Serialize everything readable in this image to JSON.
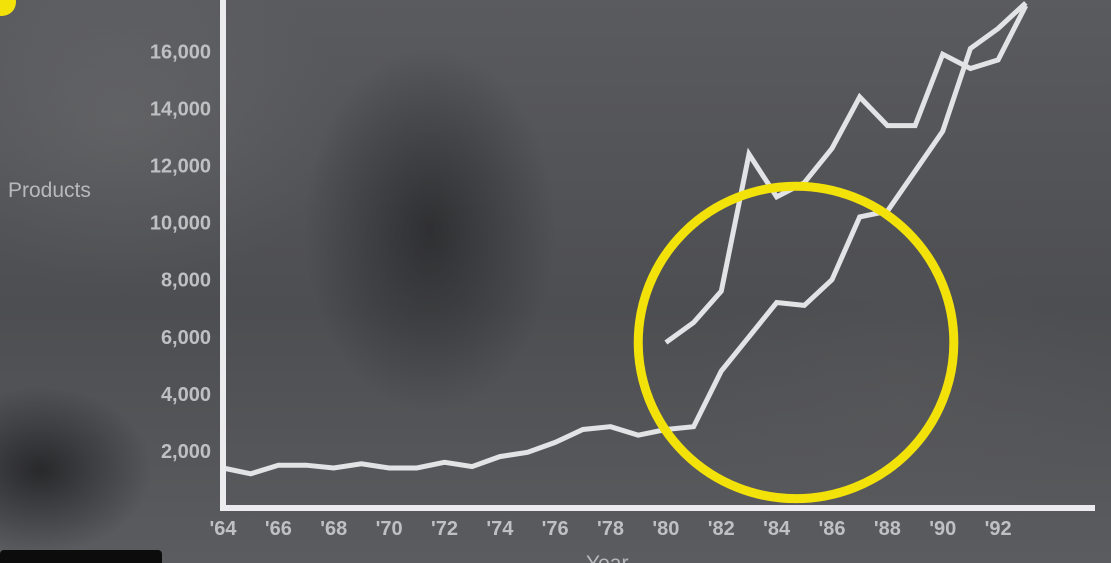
{
  "chart_data": {
    "type": "line",
    "ylabel": "Products",
    "xlabel": "Year",
    "ylim": [
      0,
      17800
    ],
    "xlim": [
      1964,
      1995.5
    ],
    "y_ticks": [
      {
        "value": 2000,
        "label": "2,000"
      },
      {
        "value": 4000,
        "label": "4,000"
      },
      {
        "value": 6000,
        "label": "6,000"
      },
      {
        "value": 8000,
        "label": "8,000"
      },
      {
        "value": 10000,
        "label": "10,000"
      },
      {
        "value": 12000,
        "label": "12,000"
      },
      {
        "value": 14000,
        "label": "14,000"
      },
      {
        "value": 16000,
        "label": "16,000"
      }
    ],
    "x_ticks": [
      {
        "value": 1964,
        "label": "'64"
      },
      {
        "value": 1966,
        "label": "'66"
      },
      {
        "value": 1968,
        "label": "'68"
      },
      {
        "value": 1970,
        "label": "'70"
      },
      {
        "value": 1972,
        "label": "'72"
      },
      {
        "value": 1974,
        "label": "'74"
      },
      {
        "value": 1976,
        "label": "'76"
      },
      {
        "value": 1978,
        "label": "'78"
      },
      {
        "value": 1980,
        "label": "'80"
      },
      {
        "value": 1982,
        "label": "'82"
      },
      {
        "value": 1984,
        "label": "'84"
      },
      {
        "value": 1986,
        "label": "'86"
      },
      {
        "value": 1988,
        "label": "'88"
      },
      {
        "value": 1990,
        "label": "'90"
      },
      {
        "value": 1992,
        "label": "'92"
      }
    ],
    "series": [
      {
        "points": [
          [
            1964,
            1400
          ],
          [
            1965,
            1200
          ],
          [
            1966,
            1500
          ],
          [
            1967,
            1500
          ],
          [
            1968,
            1400
          ],
          [
            1969,
            1550
          ],
          [
            1970,
            1400
          ],
          [
            1971,
            1400
          ],
          [
            1972,
            1600
          ],
          [
            1973,
            1450
          ],
          [
            1974,
            1800
          ],
          [
            1975,
            1950
          ],
          [
            1976,
            2300
          ],
          [
            1977,
            2750
          ],
          [
            1978,
            2850
          ],
          [
            1979,
            2550
          ],
          [
            1980,
            2750
          ],
          [
            1981,
            2850
          ],
          [
            1982,
            4800
          ],
          [
            1983,
            6000
          ],
          [
            1984,
            7200
          ],
          [
            1985,
            7100
          ],
          [
            1986,
            8000
          ],
          [
            1987,
            10200
          ],
          [
            1988,
            10400
          ],
          [
            1989,
            11800
          ],
          [
            1990,
            13200
          ],
          [
            1991,
            16100
          ],
          [
            1992,
            16800
          ],
          [
            1993,
            17700
          ]
        ]
      },
      {
        "points": [
          [
            1980,
            5800
          ],
          [
            1981,
            6500
          ],
          [
            1982,
            7600
          ],
          [
            1983,
            12400
          ],
          [
            1984,
            10900
          ],
          [
            1985,
            11400
          ],
          [
            1986,
            12600
          ],
          [
            1987,
            14400
          ],
          [
            1988,
            13400
          ],
          [
            1989,
            13400
          ],
          [
            1990,
            15900
          ],
          [
            1991,
            15400
          ],
          [
            1992,
            15700
          ],
          [
            1993,
            17600
          ]
        ]
      }
    ],
    "annotation": {
      "type": "circle",
      "color": "#f2e20a",
      "center": [
        1984.7,
        5800
      ],
      "radius_x_years": 5.7
    },
    "line_color": "#e2e3e5",
    "axis_color": "#ececee"
  }
}
